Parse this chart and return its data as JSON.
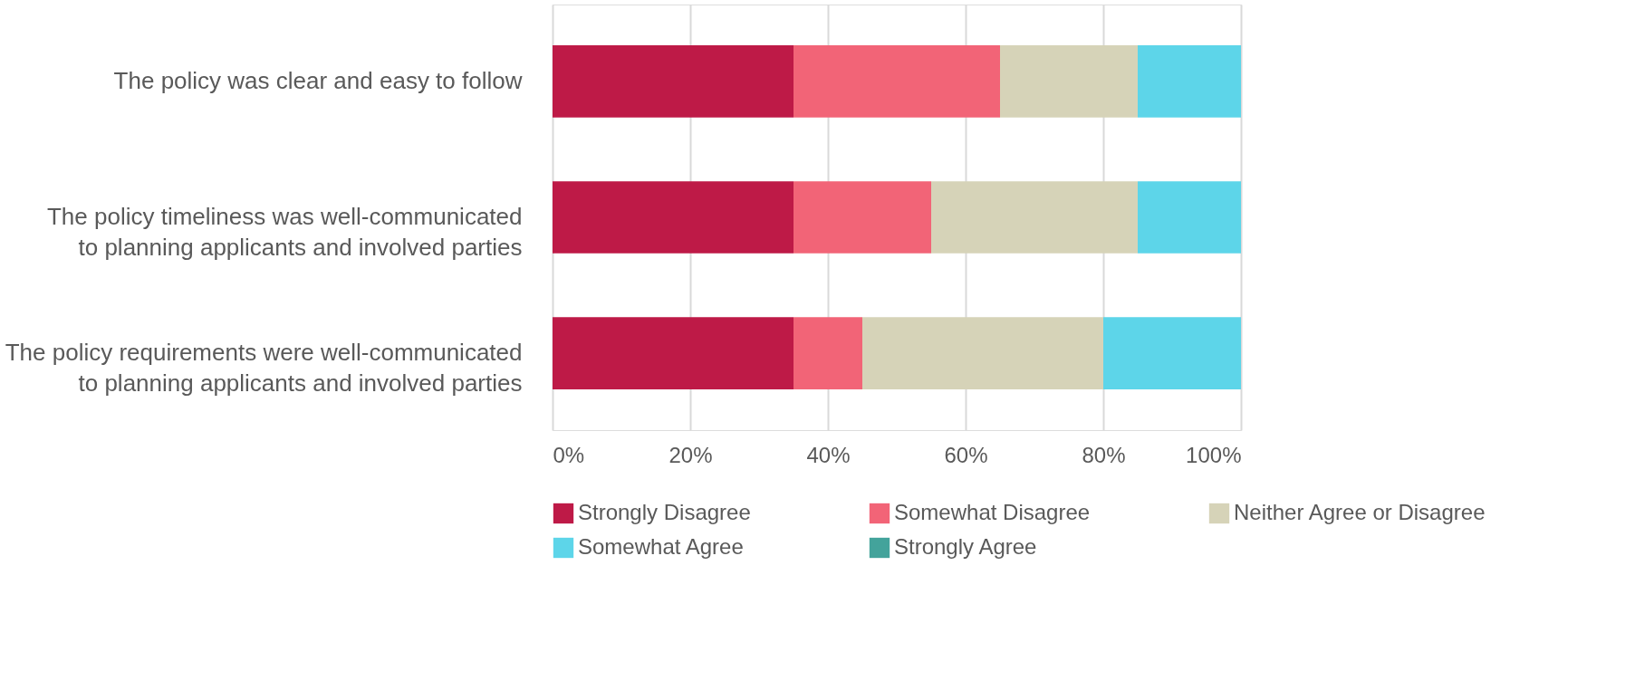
{
  "chart_data": {
    "type": "bar",
    "orientation": "horizontal",
    "stacked": true,
    "categories": [
      "The policy was clear and easy to follow",
      "The policy timeliness was well-communicated  to planning applicants and involved parties",
      "The policy requirements were well-communicated to planning applicants and involved parties"
    ],
    "series": [
      {
        "name": "Strongly Disagree",
        "color": "#be1a47",
        "values": [
          35,
          35,
          35
        ]
      },
      {
        "name": "Somewhat Disagree",
        "color": "#f26477",
        "values": [
          30,
          20,
          10
        ]
      },
      {
        "name": "Neither Agree or Disagree",
        "color": "#d6d3b8",
        "values": [
          20,
          30,
          35
        ]
      },
      {
        "name": "Somewhat Agree",
        "color": "#5dd5e9",
        "values": [
          15,
          15,
          20
        ]
      },
      {
        "name": "Strongly Agree",
        "color": "#43a39b",
        "values": [
          0,
          0,
          0
        ]
      }
    ],
    "xlim": [
      0,
      100
    ],
    "xticks": [
      {
        "value": 0,
        "label": "0%"
      },
      {
        "value": 20,
        "label": "20%"
      },
      {
        "value": 40,
        "label": "40%"
      },
      {
        "value": 60,
        "label": "60%"
      },
      {
        "value": 80,
        "label": "80%"
      },
      {
        "value": 100,
        "label": "100%"
      }
    ],
    "grid": "x",
    "legend": "bottom"
  }
}
